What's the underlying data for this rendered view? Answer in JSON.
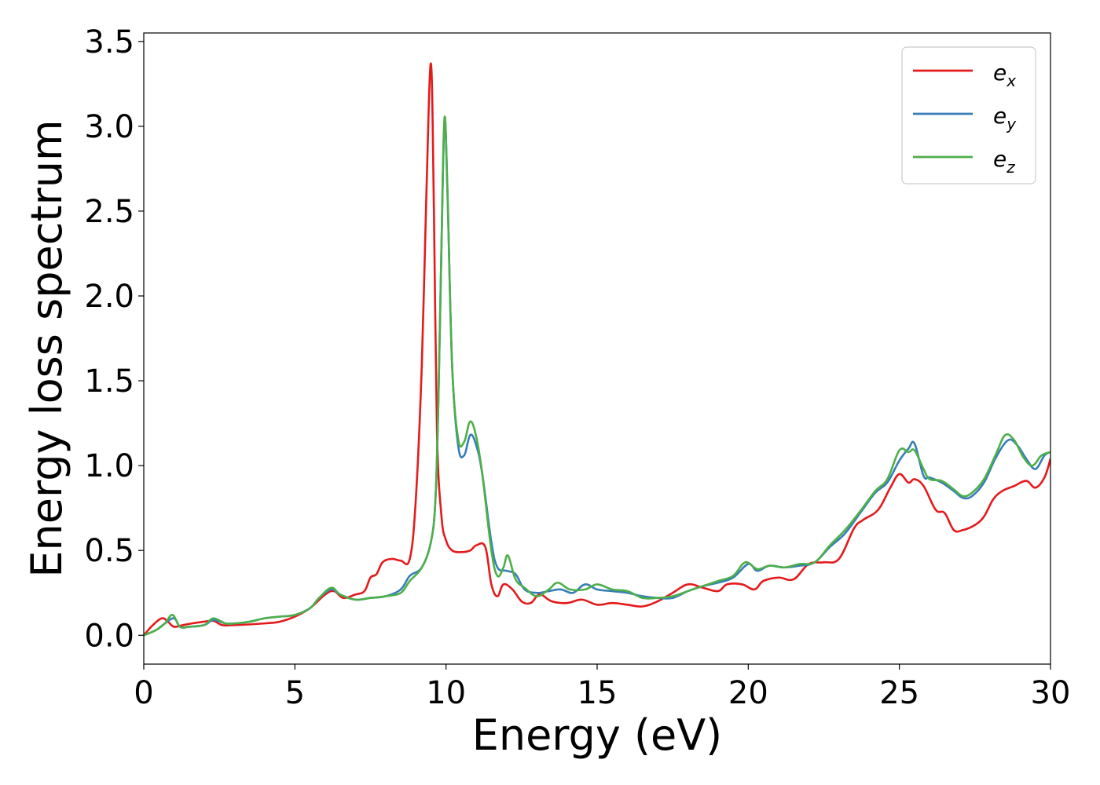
{
  "chart_data": {
    "type": "line",
    "title": "",
    "xlabel": "Energy (eV)",
    "ylabel": "Energy loss spectrum",
    "xlim": [
      0,
      30
    ],
    "ylim": [
      -0.17,
      3.55
    ],
    "xticks": [
      0,
      5,
      10,
      15,
      20,
      25,
      30
    ],
    "yticks": [
      0.0,
      0.5,
      1.0,
      1.5,
      2.0,
      2.5,
      3.0,
      3.5
    ],
    "xtick_labels": [
      "0",
      "5",
      "10",
      "15",
      "20",
      "25",
      "30"
    ],
    "ytick_labels": [
      "0.0",
      "0.5",
      "1.0",
      "1.5",
      "2.0",
      "2.5",
      "3.0",
      "3.5"
    ],
    "grid": false,
    "legend_position": "top-right",
    "series": [
      {
        "name": "e",
        "subscript": "x",
        "color": "#e41a1c",
        "points": [
          [
            0,
            0.0
          ],
          [
            0.3,
            0.06
          ],
          [
            0.6,
            0.1
          ],
          [
            0.8,
            0.08
          ],
          [
            1.0,
            0.05
          ],
          [
            1.3,
            0.06
          ],
          [
            1.6,
            0.07
          ],
          [
            2.0,
            0.08
          ],
          [
            2.3,
            0.085
          ],
          [
            2.6,
            0.06
          ],
          [
            3.0,
            0.06
          ],
          [
            4.0,
            0.07
          ],
          [
            4.5,
            0.08
          ],
          [
            5.0,
            0.11
          ],
          [
            5.5,
            0.16
          ],
          [
            6.0,
            0.24
          ],
          [
            6.3,
            0.26
          ],
          [
            6.6,
            0.22
          ],
          [
            7.0,
            0.24
          ],
          [
            7.3,
            0.26
          ],
          [
            7.5,
            0.34
          ],
          [
            7.7,
            0.36
          ],
          [
            7.9,
            0.43
          ],
          [
            8.2,
            0.45
          ],
          [
            8.5,
            0.44
          ],
          [
            8.8,
            0.45
          ],
          [
            9.0,
            0.8
          ],
          [
            9.2,
            1.6
          ],
          [
            9.35,
            2.6
          ],
          [
            9.5,
            3.37
          ],
          [
            9.6,
            2.5
          ],
          [
            9.7,
            1.2
          ],
          [
            9.85,
            0.7
          ],
          [
            10.0,
            0.56
          ],
          [
            10.2,
            0.5
          ],
          [
            10.5,
            0.49
          ],
          [
            10.8,
            0.5
          ],
          [
            11.0,
            0.53
          ],
          [
            11.3,
            0.52
          ],
          [
            11.5,
            0.3
          ],
          [
            11.7,
            0.23
          ],
          [
            11.9,
            0.3
          ],
          [
            12.2,
            0.27
          ],
          [
            12.5,
            0.2
          ],
          [
            12.8,
            0.19
          ],
          [
            13.1,
            0.24
          ],
          [
            13.5,
            0.2
          ],
          [
            14.0,
            0.19
          ],
          [
            14.5,
            0.21
          ],
          [
            15.0,
            0.18
          ],
          [
            15.5,
            0.19
          ],
          [
            16.0,
            0.18
          ],
          [
            16.5,
            0.17
          ],
          [
            17.0,
            0.2
          ],
          [
            17.5,
            0.25
          ],
          [
            18.0,
            0.3
          ],
          [
            18.5,
            0.28
          ],
          [
            19.0,
            0.26
          ],
          [
            19.3,
            0.3
          ],
          [
            19.8,
            0.3
          ],
          [
            20.2,
            0.27
          ],
          [
            20.5,
            0.32
          ],
          [
            21.0,
            0.34
          ],
          [
            21.5,
            0.33
          ],
          [
            22.0,
            0.42
          ],
          [
            22.5,
            0.43
          ],
          [
            23.0,
            0.45
          ],
          [
            23.5,
            0.63
          ],
          [
            23.8,
            0.68
          ],
          [
            24.3,
            0.74
          ],
          [
            24.7,
            0.87
          ],
          [
            25.0,
            0.95
          ],
          [
            25.3,
            0.9
          ],
          [
            25.5,
            0.92
          ],
          [
            25.8,
            0.88
          ],
          [
            26.2,
            0.74
          ],
          [
            26.5,
            0.72
          ],
          [
            26.8,
            0.62
          ],
          [
            27.1,
            0.62
          ],
          [
            27.5,
            0.65
          ],
          [
            27.8,
            0.7
          ],
          [
            28.1,
            0.8
          ],
          [
            28.4,
            0.85
          ],
          [
            28.8,
            0.88
          ],
          [
            29.2,
            0.91
          ],
          [
            29.5,
            0.87
          ],
          [
            29.8,
            0.93
          ],
          [
            30.0,
            1.04
          ]
        ]
      },
      {
        "name": "e",
        "subscript": "y",
        "color": "#377eb8",
        "points": [
          [
            0,
            0.0
          ],
          [
            0.4,
            0.03
          ],
          [
            0.7,
            0.07
          ],
          [
            1.0,
            0.1
          ],
          [
            1.2,
            0.05
          ],
          [
            1.5,
            0.05
          ],
          [
            2.0,
            0.06
          ],
          [
            2.3,
            0.09
          ],
          [
            2.7,
            0.07
          ],
          [
            3.0,
            0.07
          ],
          [
            3.5,
            0.08
          ],
          [
            4.0,
            0.1
          ],
          [
            4.5,
            0.11
          ],
          [
            5.0,
            0.12
          ],
          [
            5.5,
            0.16
          ],
          [
            5.8,
            0.22
          ],
          [
            6.2,
            0.27
          ],
          [
            6.5,
            0.24
          ],
          [
            7.0,
            0.21
          ],
          [
            7.5,
            0.22
          ],
          [
            8.0,
            0.23
          ],
          [
            8.5,
            0.27
          ],
          [
            8.8,
            0.35
          ],
          [
            9.2,
            0.4
          ],
          [
            9.5,
            0.55
          ],
          [
            9.65,
            0.8
          ],
          [
            9.75,
            1.4
          ],
          [
            9.85,
            2.3
          ],
          [
            9.95,
            3.03
          ],
          [
            10.05,
            2.6
          ],
          [
            10.2,
            1.6
          ],
          [
            10.4,
            1.12
          ],
          [
            10.6,
            1.06
          ],
          [
            10.8,
            1.18
          ],
          [
            11.0,
            1.12
          ],
          [
            11.2,
            0.95
          ],
          [
            11.5,
            0.55
          ],
          [
            11.7,
            0.4
          ],
          [
            12.0,
            0.38
          ],
          [
            12.3,
            0.36
          ],
          [
            12.6,
            0.27
          ],
          [
            13.0,
            0.25
          ],
          [
            13.4,
            0.26
          ],
          [
            13.8,
            0.27
          ],
          [
            14.2,
            0.25
          ],
          [
            14.6,
            0.3
          ],
          [
            15.0,
            0.27
          ],
          [
            15.5,
            0.26
          ],
          [
            16.0,
            0.25
          ],
          [
            16.5,
            0.23
          ],
          [
            17.0,
            0.22
          ],
          [
            17.5,
            0.22
          ],
          [
            18.0,
            0.26
          ],
          [
            18.5,
            0.29
          ],
          [
            19.0,
            0.31
          ],
          [
            19.5,
            0.34
          ],
          [
            20.0,
            0.42
          ],
          [
            20.3,
            0.38
          ],
          [
            20.7,
            0.41
          ],
          [
            21.2,
            0.4
          ],
          [
            21.7,
            0.41
          ],
          [
            22.2,
            0.43
          ],
          [
            22.7,
            0.52
          ],
          [
            23.2,
            0.6
          ],
          [
            23.7,
            0.72
          ],
          [
            24.2,
            0.84
          ],
          [
            24.6,
            0.9
          ],
          [
            25.0,
            1.03
          ],
          [
            25.3,
            1.1
          ],
          [
            25.5,
            1.13
          ],
          [
            25.8,
            0.94
          ],
          [
            26.0,
            0.93
          ],
          [
            26.4,
            0.9
          ],
          [
            26.8,
            0.85
          ],
          [
            27.1,
            0.81
          ],
          [
            27.4,
            0.82
          ],
          [
            27.8,
            0.9
          ],
          [
            28.2,
            1.05
          ],
          [
            28.6,
            1.15
          ],
          [
            28.9,
            1.12
          ],
          [
            29.2,
            1.04
          ],
          [
            29.5,
            0.98
          ],
          [
            29.8,
            1.06
          ],
          [
            30.0,
            1.08
          ]
        ]
      },
      {
        "name": "e",
        "subscript": "z",
        "color": "#4daf4a",
        "points": [
          [
            0,
            0.0
          ],
          [
            0.4,
            0.03
          ],
          [
            0.7,
            0.07
          ],
          [
            0.95,
            0.12
          ],
          [
            1.2,
            0.05
          ],
          [
            1.5,
            0.05
          ],
          [
            2.0,
            0.06
          ],
          [
            2.3,
            0.1
          ],
          [
            2.7,
            0.07
          ],
          [
            3.0,
            0.07
          ],
          [
            3.5,
            0.08
          ],
          [
            4.0,
            0.1
          ],
          [
            4.5,
            0.11
          ],
          [
            5.0,
            0.12
          ],
          [
            5.5,
            0.16
          ],
          [
            5.8,
            0.22
          ],
          [
            6.2,
            0.28
          ],
          [
            6.5,
            0.24
          ],
          [
            7.0,
            0.21
          ],
          [
            7.5,
            0.22
          ],
          [
            8.0,
            0.23
          ],
          [
            8.5,
            0.25
          ],
          [
            8.8,
            0.32
          ],
          [
            9.2,
            0.4
          ],
          [
            9.5,
            0.55
          ],
          [
            9.65,
            0.8
          ],
          [
            9.75,
            1.4
          ],
          [
            9.85,
            2.3
          ],
          [
            9.95,
            3.05
          ],
          [
            10.05,
            2.6
          ],
          [
            10.2,
            1.6
          ],
          [
            10.4,
            1.16
          ],
          [
            10.6,
            1.14
          ],
          [
            10.8,
            1.26
          ],
          [
            11.0,
            1.17
          ],
          [
            11.2,
            0.95
          ],
          [
            11.5,
            0.5
          ],
          [
            11.7,
            0.35
          ],
          [
            11.9,
            0.4
          ],
          [
            12.05,
            0.47
          ],
          [
            12.3,
            0.33
          ],
          [
            12.6,
            0.28
          ],
          [
            13.0,
            0.23
          ],
          [
            13.4,
            0.27
          ],
          [
            13.7,
            0.31
          ],
          [
            14.1,
            0.27
          ],
          [
            14.6,
            0.27
          ],
          [
            15.0,
            0.3
          ],
          [
            15.5,
            0.27
          ],
          [
            16.0,
            0.26
          ],
          [
            16.5,
            0.22
          ],
          [
            17.0,
            0.22
          ],
          [
            17.5,
            0.23
          ],
          [
            18.0,
            0.26
          ],
          [
            18.5,
            0.29
          ],
          [
            19.0,
            0.32
          ],
          [
            19.5,
            0.35
          ],
          [
            19.9,
            0.43
          ],
          [
            20.3,
            0.39
          ],
          [
            20.7,
            0.41
          ],
          [
            21.2,
            0.4
          ],
          [
            21.7,
            0.42
          ],
          [
            22.2,
            0.43
          ],
          [
            22.7,
            0.53
          ],
          [
            23.2,
            0.62
          ],
          [
            23.7,
            0.73
          ],
          [
            24.2,
            0.85
          ],
          [
            24.6,
            0.92
          ],
          [
            25.0,
            1.09
          ],
          [
            25.3,
            1.08
          ],
          [
            25.5,
            1.09
          ],
          [
            25.8,
            0.98
          ],
          [
            26.0,
            0.92
          ],
          [
            26.4,
            0.91
          ],
          [
            26.8,
            0.86
          ],
          [
            27.1,
            0.82
          ],
          [
            27.4,
            0.84
          ],
          [
            27.8,
            0.92
          ],
          [
            28.2,
            1.07
          ],
          [
            28.5,
            1.18
          ],
          [
            28.8,
            1.15
          ],
          [
            29.1,
            1.05
          ],
          [
            29.4,
            1.0
          ],
          [
            29.7,
            1.06
          ],
          [
            30.0,
            1.08
          ]
        ]
      }
    ]
  }
}
